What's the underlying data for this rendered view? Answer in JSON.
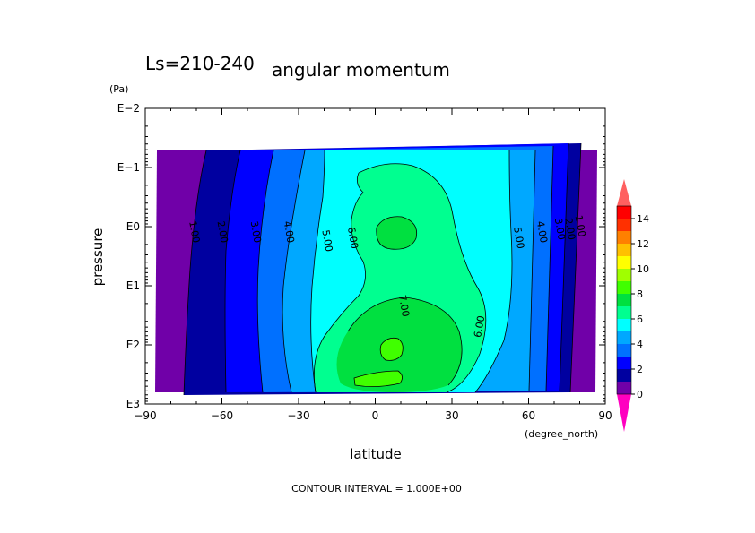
{
  "chart_data": {
    "type": "contour",
    "period_label": "Ls=210-240",
    "title": "angular momentum",
    "xlabel": "latitude",
    "xunit": "(degree_north)",
    "ylabel": "pressure",
    "yunit": "(Pa)",
    "footer": "CONTOUR INTERVAL = 1.000E+00",
    "xlim": [
      -90,
      90
    ],
    "xticks": [
      -90,
      -60,
      -30,
      0,
      30,
      60,
      90
    ],
    "xtick_labels": [
      "−90",
      "−60",
      "−30",
      "0",
      "30",
      "60",
      "90"
    ],
    "ylim_log10": [
      -2,
      3
    ],
    "yticks_log10": [
      -2,
      -1,
      0,
      1,
      2,
      3
    ],
    "ytick_labels": [
      "E−2",
      "E−1",
      "E0",
      "E1",
      "E2",
      "E3"
    ],
    "y_scale": "log",
    "y_inverted": true,
    "contour_interval": 1.0,
    "contour_labels": [
      {
        "text": "1.00",
        "lat": -72,
        "logp": 0.1
      },
      {
        "text": "2.00",
        "lat": -61,
        "logp": 0.1
      },
      {
        "text": "3.00",
        "lat": -48,
        "logp": 0.1
      },
      {
        "text": "4.00",
        "lat": -35,
        "logp": 0.1
      },
      {
        "text": "5.00",
        "lat": -20,
        "logp": 0.25
      },
      {
        "text": "6.00",
        "lat": -10,
        "logp": 0.2
      },
      {
        "text": "7.00",
        "lat": 10,
        "logp": 1.35
      },
      {
        "text": "6.00",
        "lat": 42,
        "logp": 1.7
      },
      {
        "text": "5.00",
        "lat": 55,
        "logp": 0.2
      },
      {
        "text": "4.00",
        "lat": 64,
        "logp": 0.1
      },
      {
        "text": "3.00",
        "lat": 71,
        "logp": 0.05
      },
      {
        "text": "2.00",
        "lat": 75,
        "logp": 0.05
      },
      {
        "text": "1.00",
        "lat": 79,
        "logp": 0.0
      }
    ],
    "colorbar": {
      "ticks": [
        0,
        2,
        4,
        6,
        8,
        10,
        12,
        14
      ],
      "levels": [
        {
          "lo": 0,
          "hi": 1,
          "color": "#7000a8"
        },
        {
          "lo": 1,
          "hi": 2,
          "color": "#0000a0"
        },
        {
          "lo": 2,
          "hi": 3,
          "color": "#0000ff"
        },
        {
          "lo": 3,
          "hi": 4,
          "color": "#0070ff"
        },
        {
          "lo": 4,
          "hi": 5,
          "color": "#00a8ff"
        },
        {
          "lo": 5,
          "hi": 6,
          "color": "#00ffff"
        },
        {
          "lo": 6,
          "hi": 7,
          "color": "#00ff90"
        },
        {
          "lo": 7,
          "hi": 8,
          "color": "#00e040"
        },
        {
          "lo": 8,
          "hi": 9,
          "color": "#40ff00"
        },
        {
          "lo": 9,
          "hi": 10,
          "color": "#a0ff00"
        },
        {
          "lo": 10,
          "hi": 11,
          "color": "#ffff00"
        },
        {
          "lo": 11,
          "hi": 12,
          "color": "#ffc000"
        },
        {
          "lo": 12,
          "hi": 13,
          "color": "#ff8000"
        },
        {
          "lo": 13,
          "hi": 14,
          "color": "#ff3000"
        },
        {
          "lo": 14,
          "hi": 15,
          "color": "#ff0000"
        }
      ],
      "over_color": "#ff6060",
      "under_color": "#ff00c0"
    },
    "colors": {
      "c0": "#7000a8",
      "c1": "#0000a0",
      "c2": "#0000ff",
      "c3": "#0070ff",
      "c4": "#00a8ff",
      "c5": "#00ffff",
      "c6": "#00ff90",
      "c7": "#00e040"
    }
  }
}
